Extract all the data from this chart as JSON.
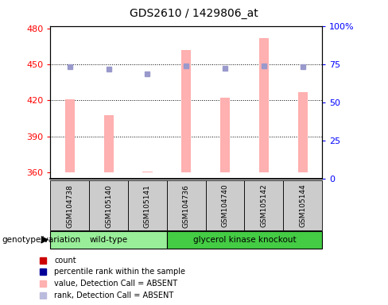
{
  "title": "GDS2610 / 1429806_at",
  "samples": [
    "GSM104738",
    "GSM105140",
    "GSM105141",
    "GSM104736",
    "GSM104740",
    "GSM105142",
    "GSM105144"
  ],
  "pink_bar_values": [
    421,
    408,
    361,
    462,
    422,
    472,
    427
  ],
  "blue_square_values": [
    448,
    446,
    442,
    449,
    447,
    449,
    448
  ],
  "ylim_left": [
    355,
    482
  ],
  "yticks_left": [
    360,
    390,
    420,
    450,
    480
  ],
  "yticks_right": [
    0,
    25,
    50,
    75,
    100
  ],
  "pink_bar_color": "#FFB0B0",
  "blue_square_color": "#9999CC",
  "sample_box_color": "#CCCCCC",
  "wild_type_color": "#99EE99",
  "knockout_color": "#44CC44",
  "wild_type_label": "wild-type",
  "knockout_label": "glycerol kinase knockout",
  "wild_type_indices": [
    0,
    1,
    2
  ],
  "knockout_indices": [
    3,
    4,
    5,
    6
  ],
  "legend_colors": [
    "#CC0000",
    "#000099",
    "#FFB0B0",
    "#BBBBDD"
  ],
  "legend_labels": [
    "count",
    "percentile rank within the sample",
    "value, Detection Call = ABSENT",
    "rank, Detection Call = ABSENT"
  ],
  "genotype_label": "genotype/variation",
  "bar_bottom": 360,
  "dotted_lines": [
    390,
    420,
    450
  ],
  "title_fontsize": 10,
  "tick_fontsize": 8,
  "sample_fontsize": 6.5,
  "group_fontsize": 7.5,
  "legend_fontsize": 7,
  "genotype_fontsize": 7.5
}
